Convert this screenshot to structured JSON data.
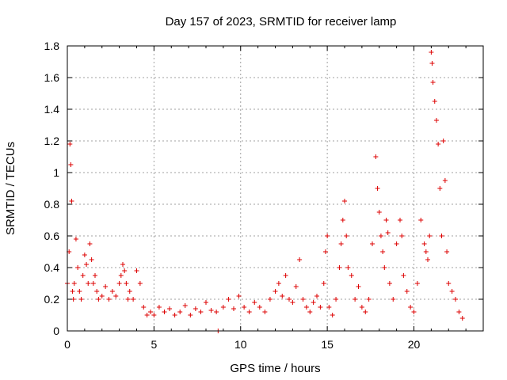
{
  "chart_data": {
    "type": "scatter",
    "title": "Day 157 of 2023, SRMTID for receiver lamp",
    "xlabel": "GPS time / hours",
    "ylabel": "SRMTID / TECUs",
    "xlim": [
      0,
      24
    ],
    "ylim": [
      0,
      1.8
    ],
    "xticks": [
      0,
      5,
      10,
      15,
      20
    ],
    "xtick_labels": [
      "0",
      "5",
      "10",
      "15",
      "20"
    ],
    "yticks": [
      0,
      0.2,
      0.4,
      0.6,
      0.8,
      1.0,
      1.2,
      1.4,
      1.6,
      1.8
    ],
    "ytick_labels": [
      "0",
      "0.2",
      "0.4",
      "0.6",
      "0.8",
      "1",
      "1.2",
      "1.4",
      "1.6",
      "1.8"
    ],
    "grid": true,
    "marker": "+",
    "marker_color": "#dd0000",
    "series": [
      {
        "name": "SRMTID",
        "x": [
          0.0,
          0.1,
          0.15,
          0.2,
          0.25,
          0.3,
          0.35,
          0.4,
          0.5,
          0.6,
          0.7,
          0.8,
          0.9,
          1.0,
          1.1,
          1.2,
          1.3,
          1.4,
          1.5,
          1.6,
          1.7,
          1.8,
          2.0,
          2.2,
          2.4,
          2.6,
          2.8,
          3.0,
          3.1,
          3.2,
          3.3,
          3.4,
          3.5,
          3.6,
          3.8,
          4.0,
          4.2,
          4.4,
          4.6,
          4.8,
          5.0,
          5.3,
          5.6,
          5.9,
          6.2,
          6.5,
          6.8,
          7.1,
          7.4,
          7.7,
          8.0,
          8.3,
          8.6,
          8.7,
          9.0,
          9.3,
          9.6,
          9.9,
          10.2,
          10.5,
          10.8,
          11.1,
          11.4,
          11.7,
          12.0,
          12.2,
          12.4,
          12.6,
          12.8,
          13.0,
          13.2,
          13.4,
          13.6,
          13.8,
          14.0,
          14.2,
          14.4,
          14.6,
          14.8,
          14.9,
          15.0,
          15.1,
          15.3,
          15.5,
          15.7,
          15.8,
          15.9,
          16.0,
          16.1,
          16.2,
          16.4,
          16.6,
          16.8,
          17.0,
          17.2,
          17.4,
          17.6,
          17.8,
          17.9,
          18.0,
          18.1,
          18.2,
          18.3,
          18.4,
          18.5,
          18.6,
          18.8,
          19.0,
          19.2,
          19.3,
          19.4,
          19.6,
          19.8,
          20.0,
          20.2,
          20.4,
          20.6,
          20.7,
          20.8,
          20.9,
          21.0,
          21.05,
          21.1,
          21.2,
          21.3,
          21.4,
          21.5,
          21.6,
          21.7,
          21.8,
          21.9,
          22.0,
          22.2,
          22.4,
          22.6,
          22.8
        ],
        "y": [
          0.3,
          0.5,
          1.18,
          1.05,
          0.82,
          0.25,
          0.2,
          0.3,
          0.58,
          0.4,
          0.25,
          0.2,
          0.35,
          0.48,
          0.42,
          0.3,
          0.55,
          0.45,
          0.3,
          0.35,
          0.25,
          0.2,
          0.22,
          0.28,
          0.2,
          0.25,
          0.22,
          0.3,
          0.35,
          0.42,
          0.38,
          0.3,
          0.2,
          0.25,
          0.2,
          0.38,
          0.3,
          0.15,
          0.1,
          0.12,
          0.1,
          0.15,
          0.12,
          0.14,
          0.1,
          0.12,
          0.16,
          0.1,
          0.14,
          0.12,
          0.18,
          0.13,
          0.12,
          0.0,
          0.15,
          0.2,
          0.14,
          0.22,
          0.15,
          0.12,
          0.18,
          0.15,
          0.12,
          0.2,
          0.25,
          0.3,
          0.22,
          0.35,
          0.2,
          0.18,
          0.28,
          0.45,
          0.2,
          0.15,
          0.12,
          0.18,
          0.22,
          0.15,
          0.3,
          0.5,
          0.6,
          0.15,
          0.1,
          0.2,
          0.4,
          0.55,
          0.7,
          0.82,
          0.6,
          0.4,
          0.35,
          0.2,
          0.28,
          0.15,
          0.12,
          0.2,
          0.55,
          1.1,
          0.9,
          0.75,
          0.6,
          0.5,
          0.4,
          0.7,
          0.62,
          0.3,
          0.2,
          0.55,
          0.7,
          0.6,
          0.35,
          0.25,
          0.15,
          0.12,
          0.3,
          0.7,
          0.55,
          0.5,
          0.45,
          0.6,
          1.76,
          1.69,
          1.57,
          1.45,
          1.33,
          1.18,
          0.9,
          0.6,
          1.2,
          0.95,
          0.5,
          0.3,
          0.25,
          0.2,
          0.12,
          0.08
        ]
      }
    ]
  }
}
